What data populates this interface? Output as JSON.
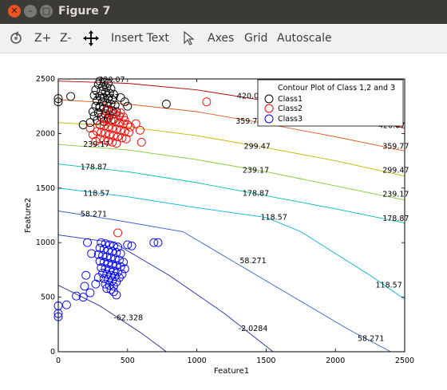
{
  "window": {
    "title": "Figure 7"
  },
  "toolbar": {
    "zoom_in": "Z+",
    "zoom_out": "Z-",
    "insert_text": "Insert Text",
    "axes": "Axes",
    "grid": "Grid",
    "autoscale": "Autoscale"
  },
  "chart_data": {
    "type": "scatter",
    "title": "",
    "xlabel": "Feature1",
    "ylabel": "Feature2",
    "xlim": [
      0,
      2500
    ],
    "ylim": [
      0,
      2500
    ],
    "xticks": [
      0,
      500,
      1000,
      1500,
      2000,
      2500
    ],
    "yticks": [
      0,
      500,
      1000,
      1500,
      2000,
      2500
    ],
    "grid": false,
    "legend": {
      "position": "top-right",
      "title": "Contour Plot of Class 1,2 and 3",
      "entries": [
        {
          "name": "Class1",
          "color": "#000000"
        },
        {
          "name": "Class2",
          "color": "#ff0000"
        },
        {
          "name": "Class3",
          "color": "#0000ff"
        }
      ]
    },
    "series": [
      {
        "name": "Class1",
        "color": "#000000",
        "points": [
          [
            300,
            2480
          ],
          [
            330,
            2470
          ],
          [
            360,
            2460
          ],
          [
            290,
            2450
          ],
          [
            320,
            2430
          ],
          [
            350,
            2420
          ],
          [
            380,
            2410
          ],
          [
            270,
            2400
          ],
          [
            310,
            2390
          ],
          [
            340,
            2380
          ],
          [
            370,
            2370
          ],
          [
            400,
            2360
          ],
          [
            260,
            2350
          ],
          [
            300,
            2340
          ],
          [
            330,
            2330
          ],
          [
            360,
            2320
          ],
          [
            390,
            2310
          ],
          [
            280,
            2300
          ],
          [
            320,
            2290
          ],
          [
            350,
            2280
          ],
          [
            380,
            2270
          ],
          [
            410,
            2260
          ],
          [
            270,
            2250
          ],
          [
            300,
            2240
          ],
          [
            330,
            2230
          ],
          [
            360,
            2220
          ],
          [
            390,
            2210
          ],
          [
            420,
            2200
          ],
          [
            290,
            2190
          ],
          [
            340,
            2180
          ],
          [
            370,
            2170
          ],
          [
            260,
            2160
          ],
          [
            310,
            2150
          ],
          [
            360,
            2140
          ],
          [
            400,
            2130
          ],
          [
            280,
            2120
          ],
          [
            330,
            2110
          ],
          [
            230,
            2100
          ],
          [
            250,
            2200
          ],
          [
            300,
            2250
          ],
          [
            0,
            2320
          ],
          [
            0,
            2290
          ],
          [
            90,
            2340
          ],
          [
            180,
            2080
          ],
          [
            780,
            2270
          ],
          [
            450,
            2330
          ],
          [
            480,
            2290
          ],
          [
            500,
            2250
          ]
        ]
      },
      {
        "name": "Class2",
        "color": "#ff0000",
        "points": [
          [
            350,
            2220
          ],
          [
            380,
            2200
          ],
          [
            410,
            2180
          ],
          [
            440,
            2160
          ],
          [
            470,
            2150
          ],
          [
            320,
            2140
          ],
          [
            350,
            2130
          ],
          [
            380,
            2120
          ],
          [
            410,
            2110
          ],
          [
            440,
            2100
          ],
          [
            470,
            2090
          ],
          [
            500,
            2080
          ],
          [
            300,
            2080
          ],
          [
            330,
            2070
          ],
          [
            360,
            2060
          ],
          [
            390,
            2050
          ],
          [
            420,
            2040
          ],
          [
            450,
            2030
          ],
          [
            480,
            2020
          ],
          [
            510,
            2010
          ],
          [
            280,
            2020
          ],
          [
            310,
            2010
          ],
          [
            340,
            2000
          ],
          [
            370,
            1990
          ],
          [
            400,
            1980
          ],
          [
            430,
            1970
          ],
          [
            460,
            1960
          ],
          [
            490,
            1950
          ],
          [
            300,
            1950
          ],
          [
            330,
            1940
          ],
          [
            360,
            1930
          ],
          [
            390,
            1920
          ],
          [
            420,
            1910
          ],
          [
            250,
            1990
          ],
          [
            270,
            1930
          ],
          [
            230,
            2050
          ],
          [
            560,
            2090
          ],
          [
            590,
            2030
          ],
          [
            600,
            1920
          ],
          [
            1070,
            2290
          ],
          [
            430,
            1090
          ],
          [
            450,
            2190
          ],
          [
            480,
            2120
          ],
          [
            520,
            2060
          ]
        ]
      },
      {
        "name": "Class3",
        "color": "#0000ff",
        "points": [
          [
            310,
            1000
          ],
          [
            340,
            990
          ],
          [
            370,
            980
          ],
          [
            400,
            970
          ],
          [
            430,
            960
          ],
          [
            300,
            950
          ],
          [
            330,
            940
          ],
          [
            360,
            930
          ],
          [
            390,
            920
          ],
          [
            420,
            910
          ],
          [
            450,
            900
          ],
          [
            290,
            890
          ],
          [
            320,
            880
          ],
          [
            350,
            870
          ],
          [
            380,
            860
          ],
          [
            410,
            850
          ],
          [
            440,
            840
          ],
          [
            300,
            830
          ],
          [
            330,
            820
          ],
          [
            360,
            810
          ],
          [
            390,
            800
          ],
          [
            420,
            790
          ],
          [
            450,
            780
          ],
          [
            310,
            770
          ],
          [
            340,
            760
          ],
          [
            370,
            750
          ],
          [
            400,
            740
          ],
          [
            430,
            730
          ],
          [
            320,
            720
          ],
          [
            350,
            710
          ],
          [
            380,
            700
          ],
          [
            410,
            690
          ],
          [
            440,
            680
          ],
          [
            330,
            670
          ],
          [
            360,
            660
          ],
          [
            390,
            650
          ],
          [
            420,
            640
          ],
          [
            340,
            620
          ],
          [
            370,
            610
          ],
          [
            400,
            600
          ],
          [
            350,
            580
          ],
          [
            380,
            570
          ],
          [
            400,
            550
          ],
          [
            420,
            520
          ],
          [
            210,
            1000
          ],
          [
            240,
            900
          ],
          [
            200,
            700
          ],
          [
            190,
            600
          ],
          [
            180,
            500
          ],
          [
            130,
            510
          ],
          [
            60,
            430
          ],
          [
            0,
            420
          ],
          [
            0,
            350
          ],
          [
            0,
            320
          ],
          [
            500,
            980
          ],
          [
            530,
            970
          ],
          [
            690,
            1000
          ],
          [
            720,
            1000
          ],
          [
            470,
            820
          ],
          [
            480,
            760
          ],
          [
            460,
            710
          ],
          [
            230,
            540
          ],
          [
            270,
            620
          ],
          [
            290,
            680
          ]
        ]
      }
    ],
    "contours": [
      {
        "level": 420.07,
        "color": "#b00000",
        "labels": [
          {
            "text": "420.07",
            "x": 290,
            "y": 2470
          },
          {
            "text": "420.07",
            "x": 1290,
            "y": 2320
          },
          {
            "text": "420.07",
            "x": 2310,
            "y": 2050
          }
        ]
      },
      {
        "level": 359.77,
        "color": "#e05a20",
        "labels": [
          {
            "text": "359.77",
            "x": 250,
            "y": 2310
          },
          {
            "text": "359.77",
            "x": 1280,
            "y": 2090
          },
          {
            "text": "359.77",
            "x": 2340,
            "y": 1860
          }
        ]
      },
      {
        "level": 299.47,
        "color": "#c8b400",
        "labels": [
          {
            "text": "299.47",
            "x": 1340,
            "y": 1860
          },
          {
            "text": "299.47",
            "x": 2340,
            "y": 1640
          }
        ]
      },
      {
        "level": 239.17,
        "color": "#7fcc30",
        "labels": [
          {
            "text": "239.17",
            "x": 180,
            "y": 1880
          },
          {
            "text": "239.17",
            "x": 1330,
            "y": 1640
          },
          {
            "text": "239.17",
            "x": 2340,
            "y": 1420
          }
        ]
      },
      {
        "level": 178.87,
        "color": "#00c0a0",
        "labels": [
          {
            "text": "178.87",
            "x": 160,
            "y": 1670
          },
          {
            "text": "178.87",
            "x": 1330,
            "y": 1430
          },
          {
            "text": "178.87",
            "x": 2340,
            "y": 1200
          }
        ]
      },
      {
        "level": 118.57,
        "color": "#00b0e0",
        "labels": [
          {
            "text": "118.57",
            "x": 180,
            "y": 1430
          },
          {
            "text": "118.57",
            "x": 1460,
            "y": 1210
          },
          {
            "text": "118.57",
            "x": 2290,
            "y": 590
          }
        ]
      },
      {
        "level": 58.271,
        "color": "#3060d0",
        "labels": [
          {
            "text": "58.271",
            "x": 160,
            "y": 1240
          },
          {
            "text": "58.271",
            "x": 1310,
            "y": 810
          },
          {
            "text": "58.271",
            "x": 2160,
            "y": 100
          }
        ]
      },
      {
        "level": -2.0284,
        "color": "#2030b0",
        "labels": [
          {
            "text": "-2.0284",
            "x": 1300,
            "y": 190
          }
        ]
      },
      {
        "level": -62.328,
        "color": "#202090",
        "labels": [
          {
            "text": "-62.328",
            "x": 400,
            "y": 290
          }
        ]
      }
    ]
  }
}
